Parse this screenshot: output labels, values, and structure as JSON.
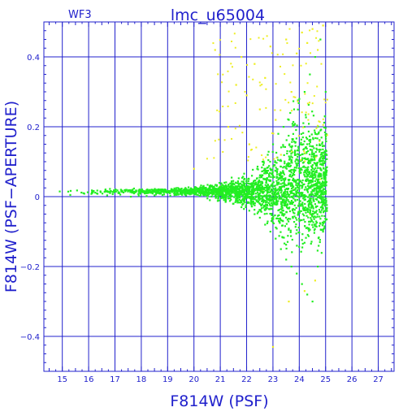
{
  "chart_data": {
    "type": "scatter",
    "title": "lmc_u65004",
    "subtitle": "WF3",
    "xlabel": "F814W (PSF)",
    "ylabel": "F814W (PSF−APERTURE)",
    "xlim": [
      14.3,
      27.6
    ],
    "ylim": [
      -0.5,
      0.5
    ],
    "x_ticks": [
      "15",
      "16",
      "17",
      "18",
      "19",
      "20",
      "21",
      "22",
      "23",
      "24",
      "25",
      "26",
      "27"
    ],
    "y_ticks": [
      "−0.4",
      "−0.2",
      "0",
      "0.2",
      "0.4"
    ],
    "grid": true,
    "series": [
      {
        "color": "#22ee22",
        "points": [
          [
            14.9,
            0.015
          ],
          [
            15.3,
            0.005
          ],
          [
            15.8,
            0.01
          ],
          [
            16.1,
            0.008
          ],
          [
            16.7,
            0.004
          ],
          [
            17.2,
            0.006
          ],
          [
            17.6,
            0.0
          ],
          [
            17.9,
            0.003
          ],
          [
            18.2,
            0.002
          ],
          [
            18.5,
            0.004
          ],
          [
            18.8,
            0.005
          ],
          [
            19.1,
            0.003
          ],
          [
            19.4,
            0.006
          ],
          [
            19.7,
            0.004
          ],
          [
            19.9,
            0.008
          ],
          [
            20.1,
            0.006
          ],
          [
            20.3,
            0.01
          ],
          [
            20.5,
            0.012
          ],
          [
            20.6,
            -0.01
          ],
          [
            20.8,
            0.015
          ],
          [
            20.9,
            -0.012
          ],
          [
            21.1,
            0.02
          ],
          [
            21.2,
            -0.015
          ],
          [
            21.4,
            0.03
          ],
          [
            21.5,
            -0.02
          ],
          [
            21.7,
            0.035
          ],
          [
            21.8,
            -0.03
          ],
          [
            22.0,
            0.05
          ],
          [
            22.1,
            -0.04
          ],
          [
            22.2,
            0.06
          ],
          [
            22.3,
            -0.05
          ],
          [
            22.4,
            0.08
          ],
          [
            22.5,
            -0.06
          ],
          [
            22.6,
            0.1
          ],
          [
            22.7,
            -0.08
          ],
          [
            22.8,
            0.12
          ],
          [
            22.9,
            -0.1
          ],
          [
            23.0,
            0.15
          ],
          [
            23.1,
            -0.12
          ],
          [
            23.2,
            0.18
          ],
          [
            23.3,
            -0.15
          ],
          [
            23.4,
            0.2
          ],
          [
            23.5,
            -0.18
          ],
          [
            23.6,
            0.22
          ],
          [
            23.7,
            -0.2
          ],
          [
            23.8,
            0.25
          ],
          [
            23.9,
            -0.22
          ],
          [
            24.0,
            0.28
          ],
          [
            24.1,
            -0.25
          ],
          [
            24.2,
            0.3
          ],
          [
            24.3,
            -0.28
          ],
          [
            24.4,
            0.35
          ],
          [
            24.5,
            -0.3
          ],
          [
            24.6,
            0.4
          ],
          [
            24.7,
            -0.2
          ],
          [
            24.8,
            0.45
          ],
          [
            24.9,
            -0.1
          ],
          [
            25.0,
            0.3
          ]
        ]
      },
      {
        "color": "#eeee22",
        "points": [
          [
            20.0,
            0.08
          ],
          [
            20.8,
            0.42
          ],
          [
            21.3,
            0.2
          ],
          [
            21.6,
            0.32
          ],
          [
            21.8,
            0.4
          ],
          [
            22.1,
            0.15
          ],
          [
            22.3,
            0.38
          ],
          [
            22.5,
            0.25
          ],
          [
            22.7,
            0.34
          ],
          [
            22.9,
            0.43
          ],
          [
            23.1,
            0.22
          ],
          [
            23.3,
            0.12
          ],
          [
            23.5,
            0.45
          ],
          [
            23.7,
            0.3
          ],
          [
            23.9,
            0.41
          ],
          [
            24.1,
            0.47
          ],
          [
            24.3,
            0.44
          ],
          [
            24.5,
            0.48
          ],
          [
            24.7,
            0.42
          ],
          [
            24.9,
            0.49
          ],
          [
            23.6,
            -0.3
          ],
          [
            24.2,
            -0.27
          ],
          [
            24.6,
            -0.24
          ],
          [
            22.6,
            0.02
          ],
          [
            23.0,
            -0.43
          ],
          [
            24.4,
            -0.05
          ],
          [
            24.8,
            0.05
          ],
          [
            23.8,
            0.02
          ],
          [
            21.0,
            0.03
          ],
          [
            22.0,
            0.29
          ]
        ]
      }
    ]
  }
}
